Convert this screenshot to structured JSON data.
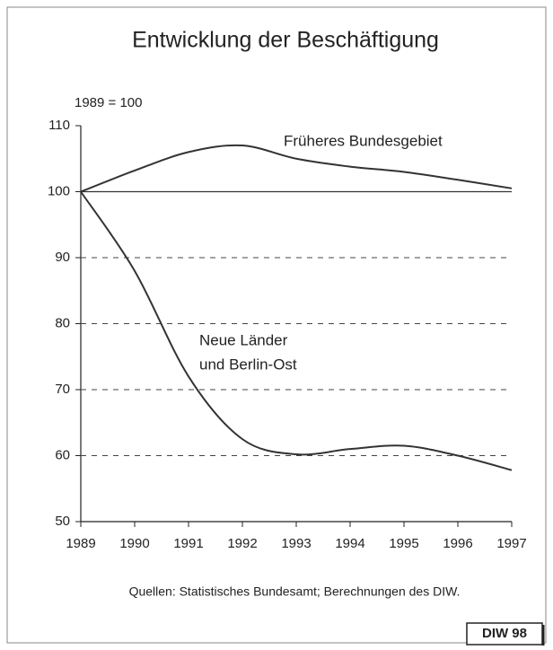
{
  "chart_data": {
    "type": "line",
    "title": "Entwicklung der Beschäftigung",
    "subtitle": "1989 = 100",
    "source": "Quellen: Statistisches Bundesamt; Berechnungen des DIW.",
    "badge": "DIW 98",
    "x": [
      1989,
      1990,
      1991,
      1992,
      1993,
      1994,
      1995,
      1996,
      1997
    ],
    "xlim": [
      1989,
      1997
    ],
    "xticks": [
      1989,
      1990,
      1991,
      1992,
      1993,
      1994,
      1995,
      1996,
      1997
    ],
    "ylim": [
      50,
      110
    ],
    "yticks": [
      50,
      60,
      70,
      80,
      90,
      100,
      110
    ],
    "grid": true,
    "reference_line": 100,
    "series": [
      {
        "name": [
          "Früheres Bundesgebiet"
        ],
        "color": "#333333",
        "values": [
          100,
          103.2,
          106,
          107,
          105,
          103.8,
          103,
          101.8,
          100.5
        ]
      },
      {
        "name": [
          "Neue Länder",
          "und Berlin-Ost"
        ],
        "color": "#333333",
        "values": [
          100,
          88,
          72,
          62.5,
          60.2,
          61,
          61.5,
          60,
          57.8
        ]
      }
    ]
  }
}
